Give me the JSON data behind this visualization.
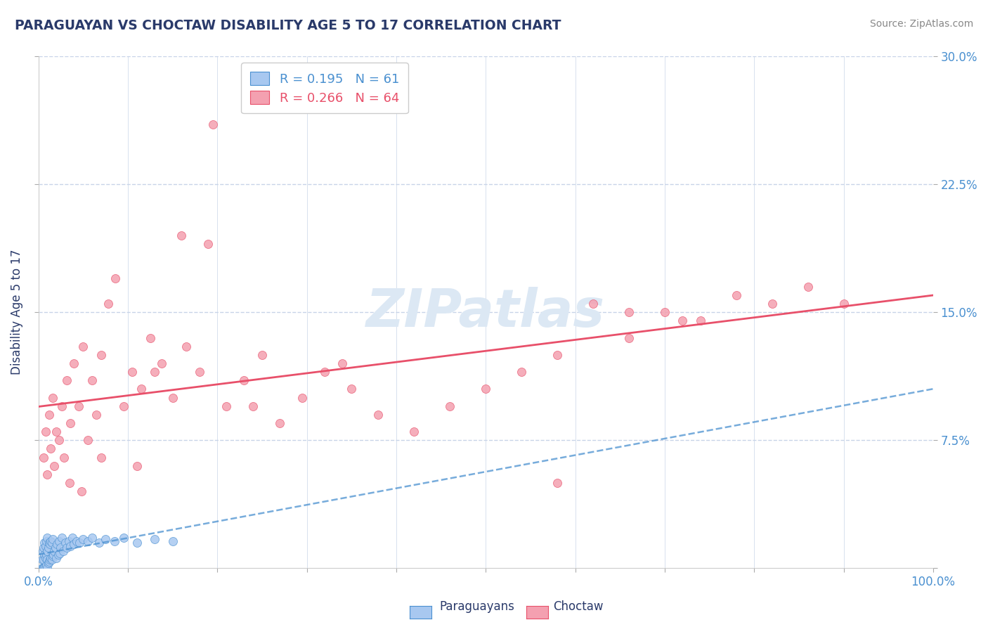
{
  "title": "PARAGUAYAN VS CHOCTAW DISABILITY AGE 5 TO 17 CORRELATION CHART",
  "source": "Source: ZipAtlas.com",
  "ylabel": "Disability Age 5 to 17",
  "xlim": [
    0.0,
    1.0
  ],
  "ylim": [
    0.0,
    0.3
  ],
  "r1": 0.195,
  "n1": 61,
  "r2": 0.266,
  "n2": 64,
  "paraguayan_color": "#a8c8f0",
  "choctaw_color": "#f4a0b0",
  "trendline_paraguayan_color": "#4a90d0",
  "trendline_choctaw_color": "#e8506a",
  "background_color": "#ffffff",
  "grid_color": "#c8d4e8",
  "title_color": "#2a3a6a",
  "watermark_color": "#dce8f4",
  "paraguayan_x": [
    0.004,
    0.004,
    0.005,
    0.005,
    0.006,
    0.006,
    0.006,
    0.007,
    0.007,
    0.007,
    0.008,
    0.008,
    0.008,
    0.009,
    0.009,
    0.009,
    0.01,
    0.01,
    0.01,
    0.01,
    0.011,
    0.011,
    0.012,
    0.012,
    0.013,
    0.013,
    0.014,
    0.014,
    0.015,
    0.015,
    0.016,
    0.016,
    0.017,
    0.018,
    0.019,
    0.02,
    0.021,
    0.022,
    0.023,
    0.024,
    0.025,
    0.026,
    0.028,
    0.03,
    0.032,
    0.034,
    0.036,
    0.038,
    0.04,
    0.043,
    0.046,
    0.05,
    0.055,
    0.06,
    0.068,
    0.075,
    0.085,
    0.095,
    0.11,
    0.13,
    0.15
  ],
  "paraguayan_y": [
    0.0,
    0.005,
    0.0,
    0.01,
    0.0,
    0.005,
    0.012,
    0.0,
    0.008,
    0.015,
    0.0,
    0.006,
    0.013,
    0.002,
    0.008,
    0.016,
    0.0,
    0.005,
    0.01,
    0.018,
    0.003,
    0.012,
    0.004,
    0.015,
    0.005,
    0.014,
    0.006,
    0.016,
    0.005,
    0.015,
    0.007,
    0.017,
    0.008,
    0.01,
    0.012,
    0.006,
    0.014,
    0.008,
    0.016,
    0.009,
    0.012,
    0.018,
    0.01,
    0.015,
    0.012,
    0.016,
    0.013,
    0.018,
    0.014,
    0.016,
    0.015,
    0.017,
    0.016,
    0.018,
    0.015,
    0.017,
    0.016,
    0.018,
    0.015,
    0.017,
    0.016
  ],
  "choctaw_x": [
    0.006,
    0.008,
    0.01,
    0.012,
    0.014,
    0.016,
    0.018,
    0.02,
    0.023,
    0.026,
    0.029,
    0.032,
    0.036,
    0.04,
    0.045,
    0.05,
    0.055,
    0.06,
    0.065,
    0.07,
    0.078,
    0.086,
    0.095,
    0.105,
    0.115,
    0.125,
    0.138,
    0.15,
    0.165,
    0.18,
    0.195,
    0.21,
    0.23,
    0.25,
    0.27,
    0.295,
    0.32,
    0.35,
    0.38,
    0.42,
    0.46,
    0.5,
    0.54,
    0.58,
    0.62,
    0.66,
    0.7,
    0.74,
    0.78,
    0.82,
    0.86,
    0.9,
    0.66,
    0.72,
    0.16,
    0.34,
    0.13,
    0.24,
    0.19,
    0.07,
    0.035,
    0.048,
    0.11,
    0.58
  ],
  "choctaw_y": [
    0.065,
    0.08,
    0.055,
    0.09,
    0.07,
    0.1,
    0.06,
    0.08,
    0.075,
    0.095,
    0.065,
    0.11,
    0.085,
    0.12,
    0.095,
    0.13,
    0.075,
    0.11,
    0.09,
    0.125,
    0.155,
    0.17,
    0.095,
    0.115,
    0.105,
    0.135,
    0.12,
    0.1,
    0.13,
    0.115,
    0.26,
    0.095,
    0.11,
    0.125,
    0.085,
    0.1,
    0.115,
    0.105,
    0.09,
    0.08,
    0.095,
    0.105,
    0.115,
    0.125,
    0.155,
    0.135,
    0.15,
    0.145,
    0.16,
    0.155,
    0.165,
    0.155,
    0.15,
    0.145,
    0.195,
    0.12,
    0.115,
    0.095,
    0.19,
    0.065,
    0.05,
    0.045,
    0.06,
    0.05
  ]
}
